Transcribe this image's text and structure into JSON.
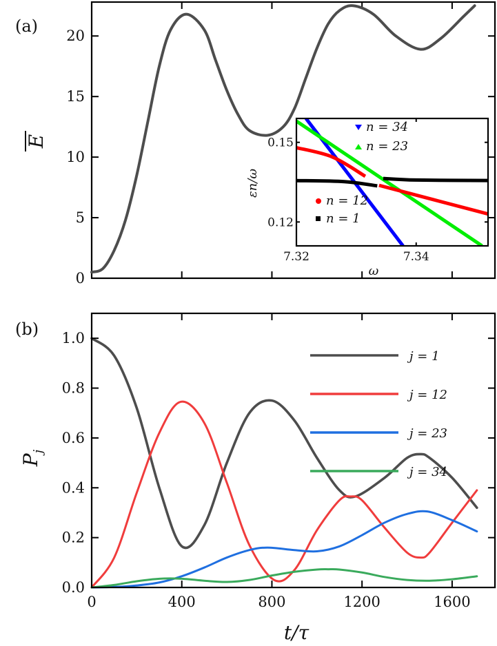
{
  "chart_data": [
    {
      "type": "line",
      "panel_label": "(a)",
      "xlabel": "",
      "ylabel": "E",
      "ylabel_overline": true,
      "xlim": [
        0,
        1790
      ],
      "ylim": [
        0,
        22.8
      ],
      "xticks": [
        0,
        400,
        800,
        1200,
        1600
      ],
      "yticks": [
        0,
        5,
        10,
        15,
        20
      ],
      "ytick_labels": [
        "0",
        "5",
        "10",
        "15",
        "20"
      ],
      "series": [
        {
          "name": "E",
          "color": "#4d4d4d",
          "x": [
            0,
            50,
            100,
            150,
            200,
            250,
            300,
            350,
            420,
            500,
            550,
            600,
            650,
            700,
            780,
            850,
            900,
            950,
            1000,
            1050,
            1100,
            1160,
            1250,
            1350,
            1460,
            1550,
            1650,
            1700
          ],
          "y": [
            0.5,
            0.8,
            2.3,
            4.8,
            8.5,
            13,
            17.5,
            20.5,
            21.8,
            20.5,
            18,
            15.5,
            13.5,
            12.2,
            11.8,
            12.5,
            14,
            16.5,
            19,
            21,
            22.1,
            22.5,
            21.8,
            20,
            18.9,
            19.8,
            21.6,
            22.5
          ]
        }
      ]
    },
    {
      "type": "scatter",
      "inset_of": "(a)",
      "xlabel": "ω",
      "ylabel": "εn/ω",
      "ylabel_parts": [
        "ε",
        "n",
        "/ω"
      ],
      "xlim": [
        7.32,
        7.352
      ],
      "ylim": [
        0.111,
        0.159
      ],
      "xticks": [
        7.32,
        7.34
      ],
      "xtick_labels": [
        "7.32",
        "7.34"
      ],
      "yticks": [
        0.12,
        0.15
      ],
      "ytick_labels": [
        "0.12",
        "0.15"
      ],
      "series": [
        {
          "name": "n = 34",
          "n": "34",
          "marker": "triangle-down",
          "color": "#0000ff",
          "segments": [
            [
              [
                7.3216,
                0.159
              ],
              [
                7.3378,
                0.111
              ]
            ]
          ]
        },
        {
          "name": "n = 23",
          "n": "23",
          "marker": "triangle-up",
          "color": "#00ee00",
          "segments": [
            [
              [
                7.32,
                0.158
              ],
              [
                7.351,
                0.111
              ]
            ]
          ]
        },
        {
          "name": "n = 12",
          "n": "12",
          "marker": "circle",
          "color": "#ff0000",
          "segments": [
            [
              [
                7.32,
                0.148
              ],
              [
                7.326,
                0.1445
              ],
              [
                7.3315,
                0.1372
              ]
            ],
            [
              [
                7.3338,
                0.1338
              ],
              [
                7.352,
                0.123
              ]
            ]
          ]
        },
        {
          "name": "n = 1",
          "n": "1",
          "marker": "square",
          "color": "#000000",
          "segments": [
            [
              [
                7.32,
                0.1356
              ],
              [
                7.328,
                0.1352
              ],
              [
                7.3335,
                0.1336
              ]
            ],
            [
              [
                7.3345,
                0.1364
              ],
              [
                7.34,
                0.1358
              ],
              [
                7.352,
                0.1356
              ]
            ]
          ]
        }
      ]
    },
    {
      "type": "line",
      "panel_label": "(b)",
      "xlabel": "t/τ",
      "ylabel": "P",
      "ylabel_sub": "j",
      "xlim": [
        0,
        1790
      ],
      "ylim": [
        0,
        1.1
      ],
      "xticks": [
        0,
        400,
        800,
        1200,
        1600
      ],
      "xtick_labels": [
        "0",
        "400",
        "800",
        "1200",
        "1600"
      ],
      "yticks": [
        0,
        0.2,
        0.4,
        0.6,
        0.8,
        1.0
      ],
      "ytick_labels": [
        "0.0",
        "0.2",
        "0.4",
        "0.6",
        "0.8",
        "1.0"
      ],
      "legend_position": "top-right",
      "series": [
        {
          "name": "j = 1",
          "j": "1",
          "color": "#4d4d4d",
          "x": [
            0,
            100,
            200,
            300,
            400,
            500,
            600,
            700,
            800,
            900,
            1000,
            1100,
            1170,
            1300,
            1400,
            1460,
            1500,
            1600,
            1710
          ],
          "y": [
            1.0,
            0.93,
            0.72,
            0.4,
            0.165,
            0.25,
            0.5,
            0.7,
            0.75,
            0.67,
            0.52,
            0.39,
            0.365,
            0.44,
            0.52,
            0.535,
            0.52,
            0.44,
            0.32
          ]
        },
        {
          "name": "j = 12",
          "j": "12",
          "color": "#f03c3c",
          "x": [
            0,
            100,
            200,
            300,
            395,
            500,
            600,
            700,
            810,
            900,
            1000,
            1100,
            1150,
            1200,
            1300,
            1400,
            1460,
            1500,
            1600,
            1710
          ],
          "y": [
            0,
            0.12,
            0.38,
            0.62,
            0.745,
            0.66,
            0.42,
            0.17,
            0.03,
            0.07,
            0.23,
            0.35,
            0.365,
            0.35,
            0.24,
            0.14,
            0.12,
            0.14,
            0.26,
            0.39
          ]
        },
        {
          "name": "j = 23",
          "j": "23",
          "color": "#1f6fe0",
          "x": [
            0,
            100,
            200,
            300,
            400,
            500,
            600,
            700,
            780,
            900,
            1000,
            1100,
            1200,
            1300,
            1400,
            1490,
            1600,
            1710
          ],
          "y": [
            0,
            0.002,
            0.008,
            0.02,
            0.045,
            0.08,
            0.12,
            0.15,
            0.16,
            0.15,
            0.145,
            0.165,
            0.21,
            0.26,
            0.295,
            0.305,
            0.27,
            0.225
          ]
        },
        {
          "name": "j = 34",
          "j": "34",
          "color": "#3aaa5c",
          "x": [
            0,
            100,
            200,
            300,
            400,
            500,
            600,
            700,
            800,
            900,
            1000,
            1050,
            1100,
            1200,
            1300,
            1400,
            1500,
            1600,
            1710
          ],
          "y": [
            0,
            0.01,
            0.025,
            0.035,
            0.035,
            0.027,
            0.022,
            0.03,
            0.048,
            0.063,
            0.072,
            0.073,
            0.072,
            0.06,
            0.042,
            0.03,
            0.027,
            0.033,
            0.045
          ]
        }
      ]
    }
  ]
}
